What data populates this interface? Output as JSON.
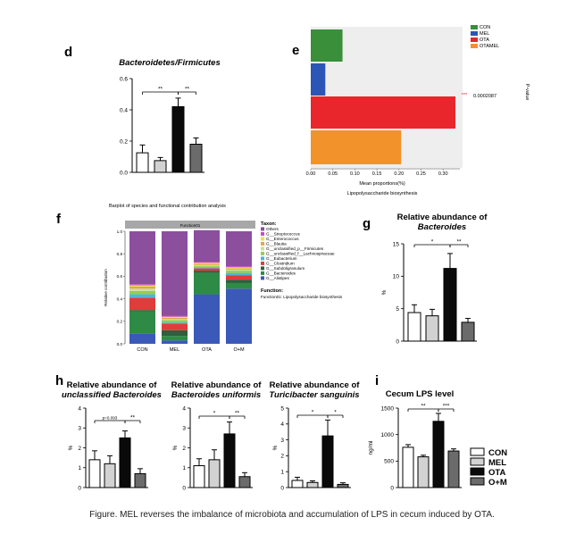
{
  "caption": "Figure. MEL reverses the imbalance of microbiota and accumulation of LPS in cecum induced by OTA.",
  "colors": {
    "CON": "#ffffff",
    "MEL": "#d2d2d2",
    "OTA": "#0a0a0a",
    "O+M": "#6b6b6b",
    "stroke": "#000000"
  },
  "legend": {
    "items": [
      {
        "label": "CON",
        "fill": "#ffffff"
      },
      {
        "label": "MEL",
        "fill": "#d2d2d2"
      },
      {
        "label": "OTA",
        "fill": "#0a0a0a"
      },
      {
        "label": "O+M",
        "fill": "#6b6b6b"
      }
    ]
  },
  "chart_data": [
    {
      "id": "d",
      "panel_label": "d",
      "type": "bar",
      "title": "Bacteroidetes/Firmicutes",
      "categories": [
        "CON",
        "MEL",
        "OTA",
        "O+M"
      ],
      "values": [
        0.125,
        0.075,
        0.42,
        0.18
      ],
      "errors": [
        0.05,
        0.02,
        0.055,
        0.04
      ],
      "ylim": [
        0,
        0.6
      ],
      "yticks": [
        "0.0",
        "0.2",
        "0.4",
        "0.6"
      ],
      "xlabel": "",
      "ylabel": "",
      "significance": [
        {
          "from": 0,
          "to": 2,
          "label": "**"
        },
        {
          "from": 2,
          "to": 3,
          "label": "**"
        }
      ]
    },
    {
      "id": "e",
      "panel_label": "e",
      "type": "bar",
      "orientation": "horizontal",
      "title": "Lipopolysaccharide biosynthesis",
      "xlabel": "Mean proportions(%)",
      "ylabel": "P-value",
      "xlim": [
        0,
        0.33
      ],
      "xticks": [
        "0.00",
        "0.05",
        "0.10",
        "0.15",
        "0.20",
        "0.25",
        "0.30"
      ],
      "legend": [
        {
          "name": "CON",
          "color": "#3a8f3a"
        },
        {
          "name": "MEL",
          "color": "#2c55b5"
        },
        {
          "name": "OTA",
          "color": "#e8262b"
        },
        {
          "name": "OTAMEL",
          "color": "#f2922a"
        }
      ],
      "values": [
        0.072,
        0.033,
        0.328,
        0.205
      ],
      "pvalue": "0.0002087",
      "pvalue_stars": "***"
    },
    {
      "id": "f",
      "panel_label": "f",
      "type": "bar",
      "stacked": true,
      "title": "Barplot of species and functional contribution analysis",
      "strip_label": "Function01",
      "ylabel": "Relative contribution",
      "yticks": [
        "0.0",
        "0.2",
        "0.4",
        "0.6",
        "0.8",
        "1.0"
      ],
      "categories": [
        "CON",
        "MEL",
        "OTA",
        "O+M"
      ],
      "taxon_title": "Taxon:",
      "function_title": "Function:",
      "function_text": "Function01: Lipopolysaccharide biosynthesis",
      "series": [
        {
          "name": "G__Alistipes",
          "color": "#3a59b8",
          "values": [
            0.09,
            0.03,
            0.44,
            0.49
          ]
        },
        {
          "name": "G__Bacteroides",
          "color": "#2e8b45",
          "values": [
            0.2,
            0.04,
            0.19,
            0.05
          ]
        },
        {
          "name": "G__Subdoligranulum",
          "color": "#2f5f3c",
          "values": [
            0.01,
            0.05,
            0.02,
            0.03
          ]
        },
        {
          "name": "G__Clostridium",
          "color": "#e23b3b",
          "values": [
            0.11,
            0.06,
            0.02,
            0.04
          ]
        },
        {
          "name": "G__Eubacterium",
          "color": "#4eb6d9",
          "values": [
            0.03,
            0.01,
            0.01,
            0.02
          ]
        },
        {
          "name": "G__unclassified_f__Lachnospiraceae",
          "color": "#98cc4e",
          "values": [
            0.03,
            0.02,
            0.01,
            0.02
          ]
        },
        {
          "name": "G__unclassified_p__Firmicutes",
          "color": "#c7dfa0",
          "values": [
            0.02,
            0.01,
            0.01,
            0.01
          ]
        },
        {
          "name": "G__Blautia",
          "color": "#e6a64a",
          "values": [
            0.02,
            0.01,
            0.01,
            0.01
          ]
        },
        {
          "name": "G__Enterococcus",
          "color": "#f0e04a",
          "values": [
            0.01,
            0.01,
            0.01,
            0.01
          ]
        },
        {
          "name": "G__Streptococcus",
          "color": "#c44ec8",
          "values": [
            0.01,
            0.01,
            0.01,
            0.01
          ]
        },
        {
          "name": "Others",
          "color": "#8b4f9e",
          "values": [
            0.47,
            0.75,
            0.28,
            0.31
          ]
        }
      ]
    },
    {
      "id": "g",
      "panel_label": "g",
      "type": "bar",
      "title": "Relative abundance of",
      "title_italic": "Bacteroides",
      "categories": [
        "CON",
        "MEL",
        "OTA",
        "O+M"
      ],
      "values": [
        4.4,
        3.9,
        11.2,
        2.9
      ],
      "errors": [
        1.2,
        1.0,
        2.3,
        0.6
      ],
      "ylim": [
        0,
        15
      ],
      "yticks": [
        "0",
        "5",
        "10",
        "15"
      ],
      "ylabel": "%",
      "significance": [
        {
          "from": 0,
          "to": 2,
          "label": "*"
        },
        {
          "from": 2,
          "to": 3,
          "label": "**"
        }
      ]
    },
    {
      "id": "h1",
      "panel_label": "h",
      "type": "bar",
      "title": "Relative abundance of",
      "title_italic": "unclassified Bacteroides",
      "categories": [
        "CON",
        "MEL",
        "OTA",
        "O+M"
      ],
      "values": [
        1.4,
        1.2,
        2.5,
        0.7
      ],
      "errors": [
        0.45,
        0.4,
        0.35,
        0.25
      ],
      "ylim": [
        0,
        4
      ],
      "yticks": [
        "0",
        "1",
        "2",
        "3",
        "4"
      ],
      "ylabel": "%",
      "significance": [
        {
          "from": 0,
          "to": 2,
          "label": "p=0.093"
        },
        {
          "from": 2,
          "to": 3,
          "label": "**"
        }
      ]
    },
    {
      "id": "h2",
      "panel_label": "",
      "type": "bar",
      "title": "Relative abundance of",
      "title_italic": "Bacteroides uniformis",
      "categories": [
        "CON",
        "MEL",
        "OTA",
        "O+M"
      ],
      "values": [
        1.1,
        1.4,
        2.7,
        0.55
      ],
      "errors": [
        0.35,
        0.5,
        0.6,
        0.2
      ],
      "ylim": [
        0,
        4
      ],
      "yticks": [
        "0",
        "1",
        "2",
        "3",
        "4"
      ],
      "ylabel": "%",
      "significance": [
        {
          "from": 0,
          "to": 2,
          "label": "*"
        },
        {
          "from": 2,
          "to": 3,
          "label": "**"
        }
      ]
    },
    {
      "id": "h3",
      "panel_label": "",
      "type": "bar",
      "title": "Relative abundance of",
      "title_italic": "Turicibacter sanguinis",
      "categories": [
        "CON",
        "MEL",
        "OTA",
        "O+M"
      ],
      "values": [
        0.45,
        0.32,
        3.25,
        0.2
      ],
      "errors": [
        0.2,
        0.1,
        1.0,
        0.1
      ],
      "ylim": [
        0,
        5
      ],
      "yticks": [
        "0",
        "1",
        "2",
        "3",
        "4",
        "5"
      ],
      "ylabel": "%",
      "significance": [
        {
          "from": 0,
          "to": 2,
          "label": "*"
        },
        {
          "from": 2,
          "to": 3,
          "label": "*"
        }
      ]
    },
    {
      "id": "i",
      "panel_label": "i",
      "type": "bar",
      "title": "Cecum LPS level",
      "title_italic": "",
      "categories": [
        "CON",
        "MEL",
        "OTA",
        "O+M"
      ],
      "values": [
        760,
        580,
        1250,
        690
      ],
      "errors": [
        50,
        30,
        150,
        40
      ],
      "ylim": [
        0,
        1500
      ],
      "yticks": [
        "0",
        "500",
        "1000",
        "1500"
      ],
      "ylabel": "ng/ml",
      "significance": [
        {
          "from": 0,
          "to": 2,
          "label": "**"
        },
        {
          "from": 2,
          "to": 3,
          "label": "***"
        }
      ]
    }
  ]
}
